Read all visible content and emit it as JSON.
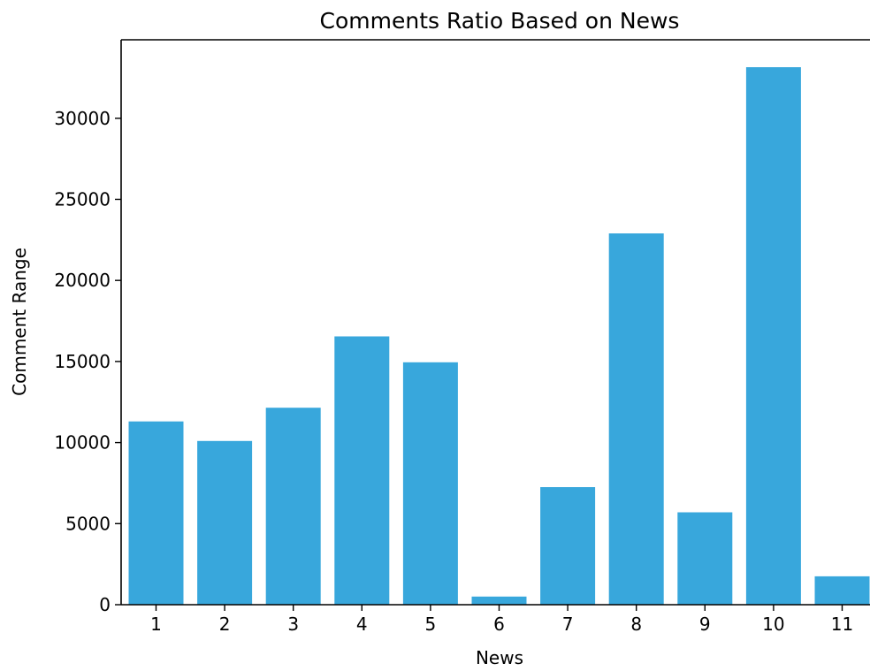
{
  "chart_data": {
    "type": "bar",
    "title": "Comments Ratio Based on News",
    "xlabel": "News",
    "ylabel": "Comment Range",
    "categories": [
      "1",
      "2",
      "3",
      "4",
      "5",
      "6",
      "7",
      "8",
      "9",
      "10",
      "11"
    ],
    "values": [
      11300,
      10100,
      12150,
      16550,
      14950,
      500,
      7250,
      22900,
      5700,
      33150,
      1750
    ],
    "yticks": [
      0,
      5000,
      10000,
      15000,
      20000,
      25000,
      30000
    ],
    "ytick_labels": [
      "0",
      "5000",
      "10000",
      "15000",
      "20000",
      "25000",
      "30000"
    ],
    "ylim": [
      0,
      34800
    ],
    "grid": false,
    "legend": "none",
    "bar_color": "#38a7dc"
  }
}
